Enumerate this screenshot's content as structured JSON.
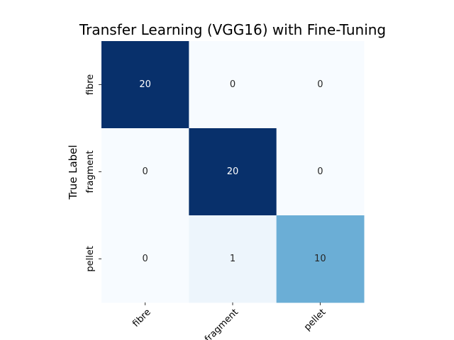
{
  "chart_data": {
    "type": "heatmap",
    "title": "Transfer Learning (VGG16) with Fine-Tuning",
    "xlabel": "",
    "ylabel": "True Label",
    "x_categories": [
      "fibre",
      "fragment",
      "pellet"
    ],
    "y_categories": [
      "fibre",
      "fragment",
      "pellet"
    ],
    "values": [
      [
        20,
        0,
        0
      ],
      [
        0,
        20,
        0
      ],
      [
        0,
        1,
        10
      ]
    ],
    "value_range": [
      0,
      20
    ],
    "colormap": "Blues",
    "colorbar": false,
    "legend": "none"
  }
}
